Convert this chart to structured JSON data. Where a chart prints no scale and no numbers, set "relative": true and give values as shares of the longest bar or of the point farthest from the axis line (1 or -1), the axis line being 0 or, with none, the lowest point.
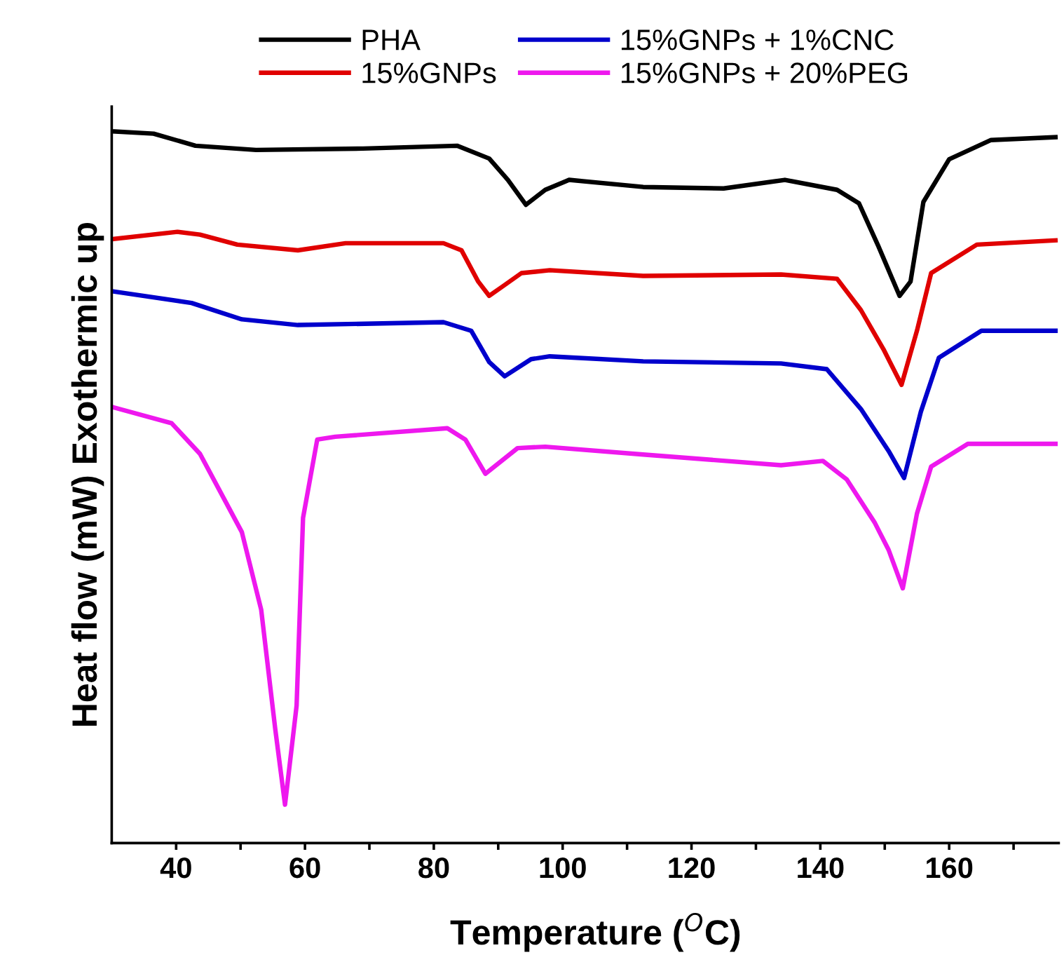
{
  "chart_data": {
    "type": "line",
    "relative": true,
    "xlabel": "Temperature ($^{O}$C)",
    "ylabel": "Heat flow (mW) Exothermic up",
    "xlim": [
      30,
      177
    ],
    "xticks": [
      40,
      {
        "value": 50,
        "label": null
      },
      60,
      {
        "value": 70,
        "label": null
      },
      80,
      {
        "value": 90,
        "label": null
      },
      100,
      {
        "value": 110,
        "label": null
      },
      120,
      {
        "value": 130,
        "label": null
      },
      140,
      {
        "value": 150,
        "label": null
      },
      160,
      {
        "value": 170,
        "label": null
      }
    ],
    "legend": "top",
    "grid": false,
    "line_style": "solid",
    "marker": "none",
    "series": [
      {
        "name": "PHA",
        "color": "#000000",
        "x": [
          30.4,
          36.5,
          43,
          52.4,
          69,
          83.6,
          88.6,
          91.5,
          94.3,
          97.3,
          101,
          112.5,
          125,
          134.5,
          142.6,
          146,
          149,
          152.3,
          154,
          156,
          160,
          166.5,
          176.5
        ],
        "values": [
          1.0,
          0.997,
          0.98,
          0.974,
          0.976,
          0.98,
          0.962,
          0.932,
          0.897,
          0.918,
          0.932,
          0.922,
          0.92,
          0.932,
          0.918,
          0.899,
          0.839,
          0.769,
          0.789,
          0.901,
          0.961,
          0.988,
          0.992
        ]
      },
      {
        "name": "15%GNPs",
        "color": "#e00000",
        "x": [
          30.4,
          40.2,
          43.7,
          49.5,
          58.9,
          66.3,
          81.5,
          84.3,
          86.9,
          88.6,
          90.8,
          93.6,
          98,
          112.5,
          133.9,
          142.6,
          146.3,
          149.8,
          152.6,
          155,
          157.2,
          164.3,
          176.5
        ],
        "values": [
          0.849,
          0.859,
          0.855,
          0.841,
          0.833,
          0.843,
          0.843,
          0.833,
          0.789,
          0.769,
          0.783,
          0.801,
          0.805,
          0.797,
          0.799,
          0.793,
          0.749,
          0.694,
          0.644,
          0.72,
          0.801,
          0.841,
          0.847
        ]
      },
      {
        "name": "15%GNPs + 1%CNC",
        "color": "#0000cc",
        "x": [
          30.4,
          42.4,
          50.2,
          58.9,
          81.5,
          85.8,
          88.6,
          91,
          95.1,
          98,
          112.5,
          133.9,
          141,
          146.3,
          150.6,
          153,
          155.6,
          158.4,
          165,
          176.5
        ],
        "values": [
          0.775,
          0.759,
          0.736,
          0.728,
          0.732,
          0.72,
          0.676,
          0.656,
          0.68,
          0.684,
          0.677,
          0.674,
          0.666,
          0.61,
          0.551,
          0.513,
          0.606,
          0.682,
          0.72,
          0.72
        ]
      },
      {
        "name": "15%GNPs + 20%PEG",
        "color": "#ee18ee",
        "x": [
          30.4,
          39.3,
          43.7,
          50.2,
          53.2,
          55.4,
          56.9,
          58.7,
          59.7,
          61.9,
          64.7,
          82.1,
          84.9,
          88,
          93,
          97.3,
          112.5,
          133.9,
          140.4,
          144.1,
          148.4,
          150.6,
          152.8,
          155,
          157.2,
          162.9,
          176.5
        ],
        "values": [
          0.612,
          0.59,
          0.547,
          0.437,
          0.328,
          0.159,
          0.054,
          0.193,
          0.457,
          0.567,
          0.571,
          0.583,
          0.567,
          0.519,
          0.555,
          0.557,
          0.546,
          0.531,
          0.537,
          0.511,
          0.451,
          0.412,
          0.358,
          0.463,
          0.529,
          0.561,
          0.561
        ]
      }
    ]
  }
}
